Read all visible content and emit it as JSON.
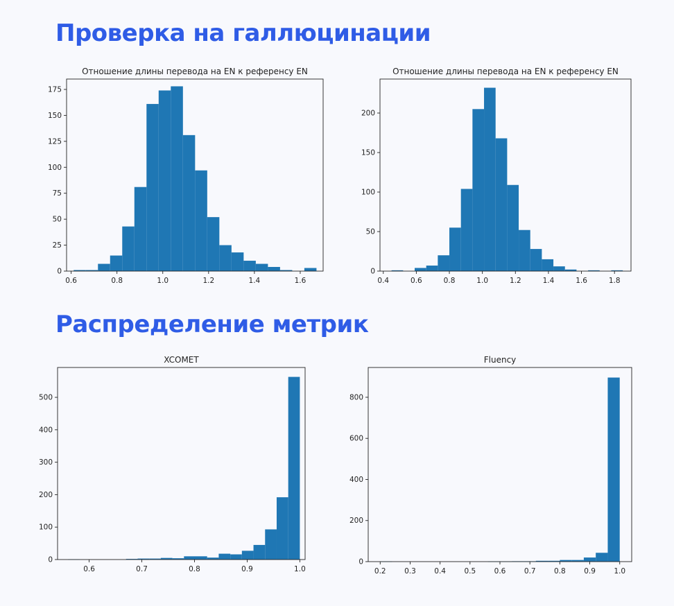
{
  "sections": {
    "hallucination_title": "Проверка на галлюцинации",
    "metrics_title": "Распределение метрик"
  },
  "colors": {
    "accent": "#2f5ce6",
    "bar": "#1f77b4",
    "background": "#f8f9fd"
  },
  "chart_data": [
    {
      "type": "bar",
      "title": "Отношение длины перевода на EN к референсу EN",
      "xlabel": "",
      "ylabel": "",
      "xlim": [
        0.58,
        1.7
      ],
      "ylim": [
        0,
        185
      ],
      "xticks": [
        0.6,
        0.8,
        1.0,
        1.2,
        1.4,
        1.6
      ],
      "yticks": [
        0,
        25,
        50,
        75,
        100,
        125,
        150,
        175
      ],
      "bin_edges": [
        0.611,
        0.664,
        0.717,
        0.77,
        0.823,
        0.876,
        0.929,
        0.982,
        1.035,
        1.088,
        1.141,
        1.194,
        1.247,
        1.3,
        1.353,
        1.406,
        1.459,
        1.512,
        1.565,
        1.618,
        1.671
      ],
      "values": [
        1,
        1,
        7,
        15,
        43,
        81,
        161,
        174,
        178,
        131,
        97,
        52,
        25,
        18,
        10,
        7,
        4,
        1,
        0,
        3
      ]
    },
    {
      "type": "bar",
      "title": "Отношение длины перевода на EN к референсу EN",
      "xlabel": "",
      "ylabel": "",
      "xlim": [
        0.38,
        1.9
      ],
      "ylim": [
        0,
        243
      ],
      "xticks": [
        0.4,
        0.6,
        0.8,
        1.0,
        1.2,
        1.4,
        1.6,
        1.8
      ],
      "yticks": [
        0,
        50,
        100,
        150,
        200
      ],
      "bin_edges": [
        0.45,
        0.52,
        0.59,
        0.66,
        0.73,
        0.8,
        0.87,
        0.94,
        1.01,
        1.08,
        1.15,
        1.22,
        1.29,
        1.36,
        1.43,
        1.5,
        1.57,
        1.64,
        1.71,
        1.78,
        1.85
      ],
      "values": [
        1,
        0,
        4,
        7,
        20,
        55,
        104,
        205,
        232,
        168,
        109,
        52,
        28,
        15,
        6,
        2,
        0,
        1,
        0,
        1
      ]
    },
    {
      "type": "bar",
      "title": "XCOMET",
      "xlabel": "",
      "ylabel": "",
      "xlim": [
        0.54,
        1.01
      ],
      "ylim": [
        0,
        592
      ],
      "xticks": [
        0.6,
        0.7,
        0.8,
        0.9,
        1.0
      ],
      "yticks": [
        0,
        100,
        200,
        300,
        400,
        500
      ],
      "bin_edges": [
        0.56,
        0.582,
        0.604,
        0.626,
        0.648,
        0.67,
        0.692,
        0.714,
        0.736,
        0.758,
        0.78,
        0.802,
        0.824,
        0.846,
        0.868,
        0.89,
        0.912,
        0.934,
        0.956,
        0.978,
        1.0
      ],
      "values": [
        1,
        0,
        0,
        0,
        0,
        2,
        3,
        3,
        5,
        4,
        10,
        10,
        6,
        18,
        16,
        27,
        45,
        93,
        192,
        563
      ]
    },
    {
      "type": "bar",
      "title": "Fluency",
      "xlabel": "",
      "ylabel": "",
      "xlim": [
        0.16,
        1.04
      ],
      "ylim": [
        0,
        945
      ],
      "xticks": [
        0.2,
        0.3,
        0.4,
        0.5,
        0.6,
        0.7,
        0.8,
        0.9,
        1.0
      ],
      "yticks": [
        0,
        200,
        400,
        600,
        800
      ],
      "bin_edges": [
        0.2,
        0.24,
        0.28,
        0.32,
        0.36,
        0.4,
        0.44,
        0.48,
        0.52,
        0.56,
        0.6,
        0.64,
        0.68,
        0.72,
        0.76,
        0.8,
        0.84,
        0.88,
        0.92,
        0.96,
        1.0
      ],
      "values": [
        1,
        0,
        0,
        0,
        0,
        0,
        0,
        0,
        0,
        1,
        1,
        2,
        2,
        4,
        4,
        8,
        8,
        20,
        43,
        896
      ]
    }
  ]
}
